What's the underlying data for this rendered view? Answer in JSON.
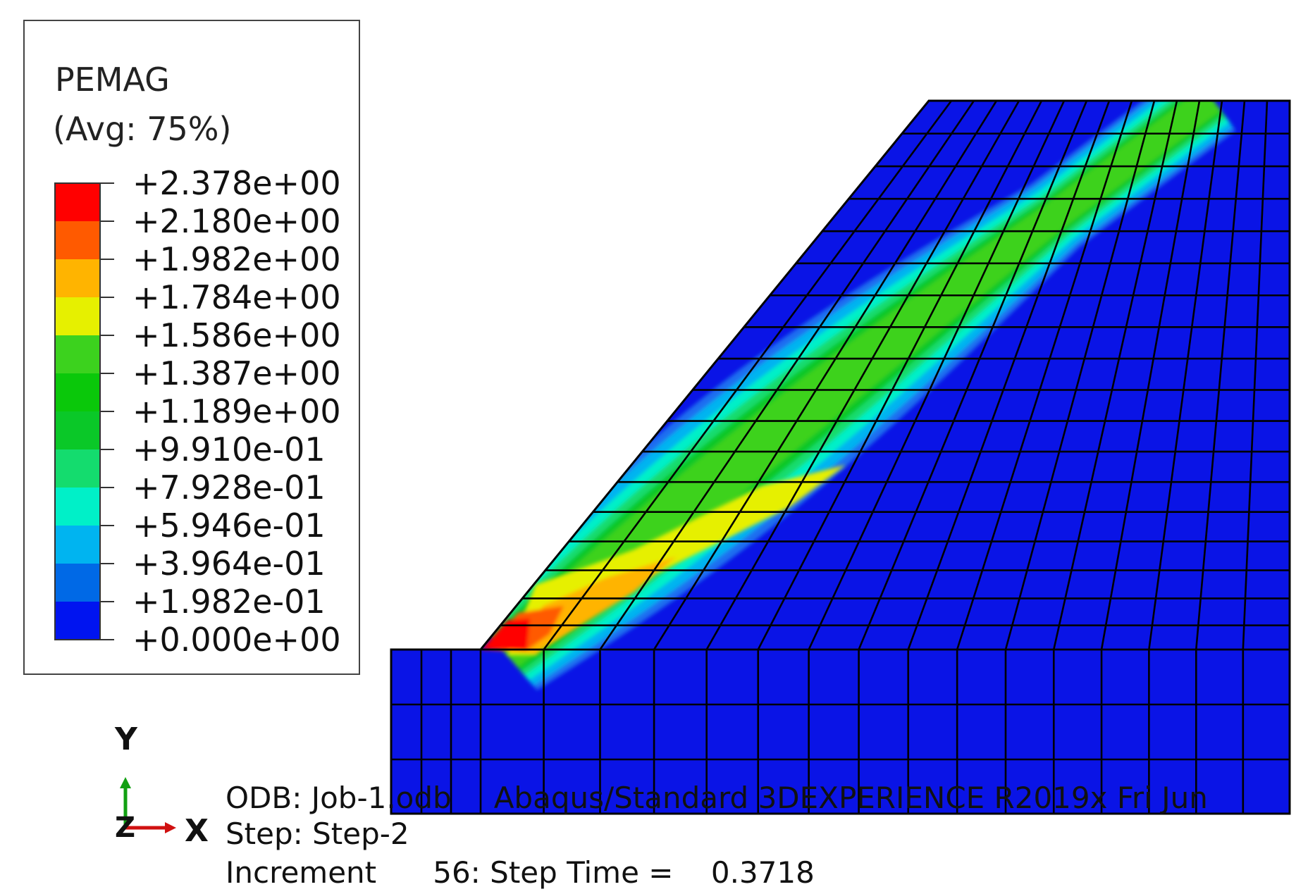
{
  "legend": {
    "variable": "PEMAG",
    "averaging": "(Avg: 75%)",
    "tick_values": [
      "+2.378e+00",
      "+2.180e+00",
      "+1.982e+00",
      "+1.784e+00",
      "+1.586e+00",
      "+1.387e+00",
      "+1.189e+00",
      "+9.910e-01",
      "+7.928e-01",
      "+5.946e-01",
      "+3.964e-01",
      "+1.982e-01",
      "+0.000e+00"
    ],
    "band_colors": [
      "#ff0000",
      "#ff5a00",
      "#ffb400",
      "#e6f000",
      "#3cd21e",
      "#0ac80a",
      "#0ac828",
      "#14dc6e",
      "#00f0c8",
      "#00b4f0",
      "#0069e6",
      "#0014f0"
    ]
  },
  "mesh_colors": {
    "base": "#0a14e6",
    "levels": [
      "#1e6ef0",
      "#00b4f0",
      "#00f0c8",
      "#14dc6e",
      "#0ac828",
      "#3cd21e",
      "#e6f000",
      "#ffb400",
      "#ff5a00",
      "#ff0000"
    ]
  },
  "triad": {
    "y_label": "Y",
    "x_label": "X",
    "z_label": "Z"
  },
  "info": {
    "line1_odb": "ODB: Job-1.odb",
    "line1_rest": "Abaqus/Standard 3DEXPERIENCE R2019x     Fri Jun",
    "line2": "Step: Step-2",
    "line3": "Increment      56: Step Time =    0.3718"
  }
}
